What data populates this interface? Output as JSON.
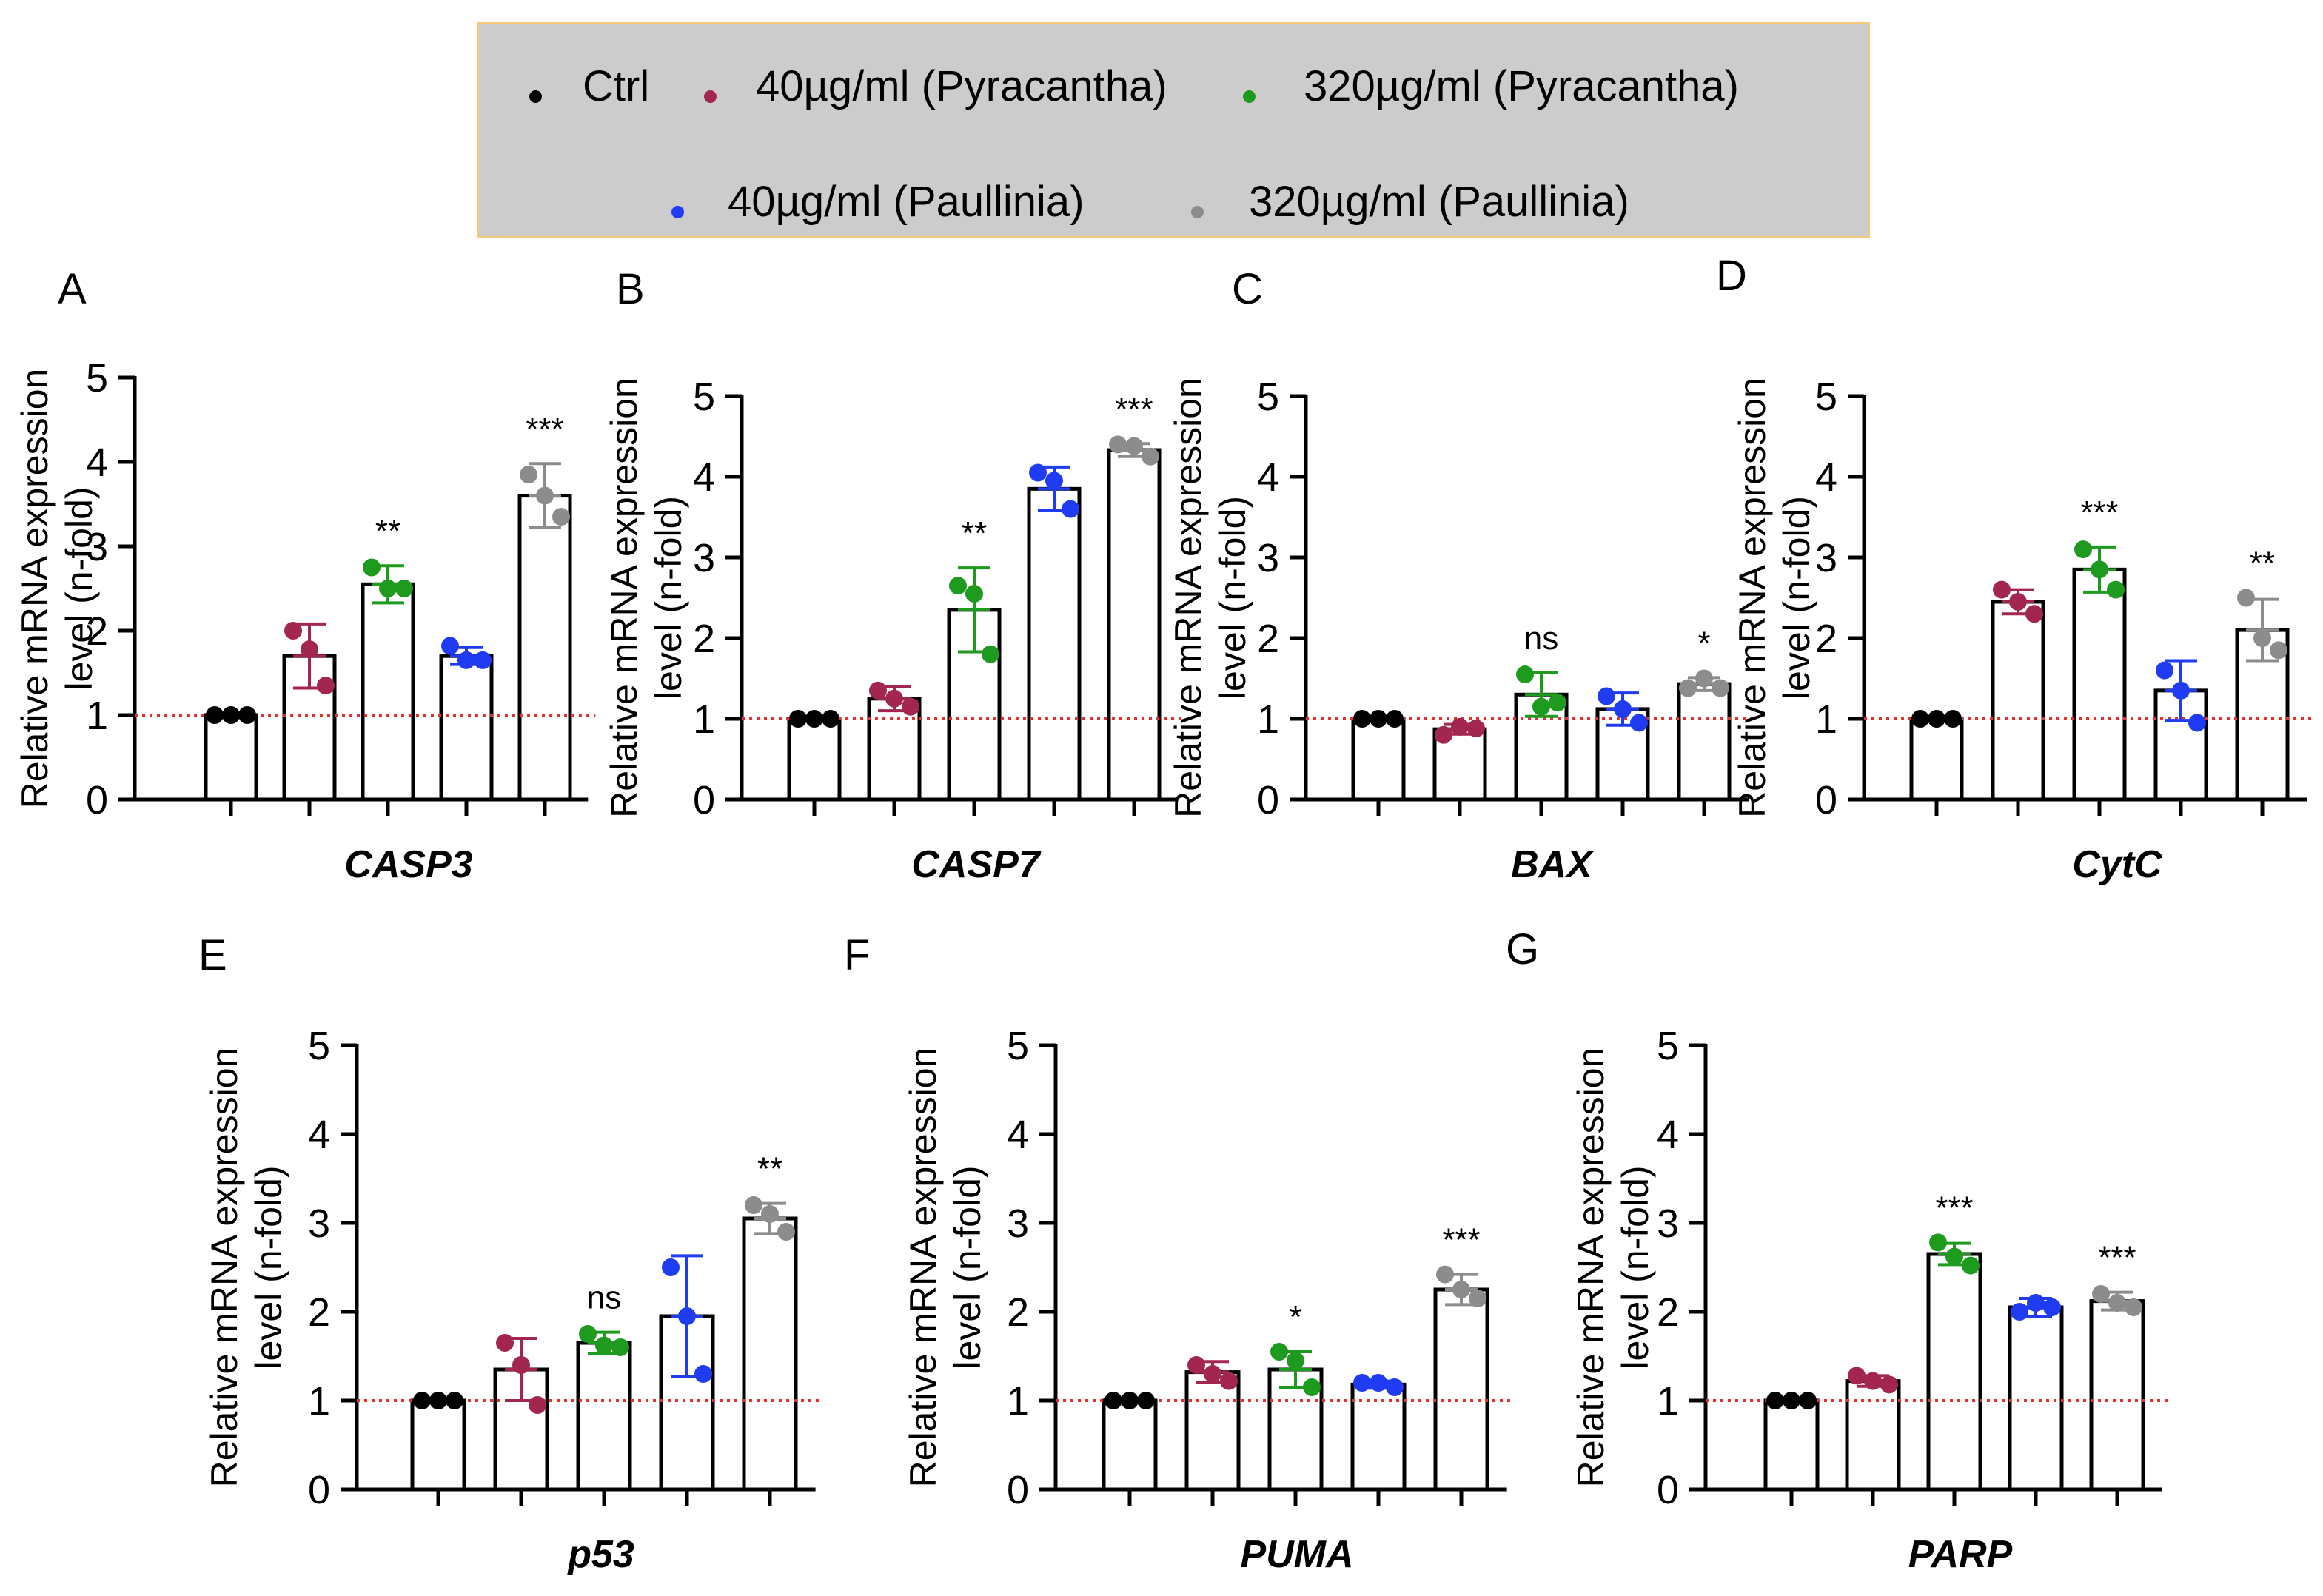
{
  "legend": {
    "items": [
      {
        "label": "Ctrl",
        "color": "#000000"
      },
      {
        "label": "40µg/ml (Pyracantha)",
        "color": "#a3264f"
      },
      {
        "label": "320µg/ml (Pyracantha)",
        "color": "#1e9a1e"
      },
      {
        "label": "40µg/ml (Paullinia)",
        "color": "#1f3cf2"
      },
      {
        "label": "320µg/ml (Paullinia)",
        "color": "#8c8c8c"
      }
    ]
  },
  "reference_line": {
    "value": 1,
    "color": "#e53030",
    "style": "dotted"
  },
  "chart_data": [
    {
      "type": "bar",
      "panel": "A",
      "gene": "CASP3",
      "ylabel": "Relative mRNA expression level (n-fold)",
      "ylim": [
        0,
        5
      ],
      "yticks": [
        "0",
        "1",
        "2",
        "3",
        "4",
        "5"
      ],
      "categories": [
        "Ctrl",
        "40µg/ml (Pyracantha)",
        "320µg/ml (Pyracantha)",
        "40µg/ml (Paullinia)",
        "320µg/ml (Paullinia)"
      ],
      "values": [
        1.0,
        1.7,
        2.55,
        1.7,
        3.6
      ],
      "sd": [
        0.02,
        0.38,
        0.22,
        0.1,
        0.38
      ],
      "points": [
        [
          1.0,
          1.0,
          1.0
        ],
        [
          2.0,
          1.35,
          1.78
        ],
        [
          2.75,
          2.5,
          2.5
        ],
        [
          1.82,
          1.65,
          1.65
        ],
        [
          3.85,
          3.35,
          3.6
        ]
      ],
      "significance": [
        "",
        "",
        "**",
        "",
        "***"
      ]
    },
    {
      "type": "bar",
      "panel": "B",
      "gene": "CASP7",
      "ylabel": "Relative mRNA expression level (n-fold)",
      "ylim": [
        0,
        5
      ],
      "yticks": [
        "0",
        "1",
        "2",
        "3",
        "4",
        "5"
      ],
      "categories": [
        "Ctrl",
        "40µg/ml (Pyracantha)",
        "320µg/ml (Pyracantha)",
        "40µg/ml (Paullinia)",
        "320µg/ml (Paullinia)"
      ],
      "values": [
        1.0,
        1.25,
        2.35,
        3.85,
        4.33
      ],
      "sd": [
        0.02,
        0.15,
        0.52,
        0.27,
        0.08
      ],
      "points": [
        [
          1.0,
          1.0,
          1.0
        ],
        [
          1.35,
          1.15,
          1.25
        ],
        [
          2.65,
          1.8,
          2.55
        ],
        [
          4.05,
          3.6,
          3.95
        ],
        [
          4.4,
          4.25,
          4.38
        ]
      ],
      "significance": [
        "",
        "",
        "**",
        "",
        "***"
      ]
    },
    {
      "type": "bar",
      "panel": "C",
      "gene": "BAX",
      "ylabel": "Relative mRNA expression level (n-fold)",
      "ylim": [
        0,
        5
      ],
      "yticks": [
        "0",
        "1",
        "2",
        "3",
        "4",
        "5"
      ],
      "categories": [
        "Ctrl",
        "40µg/ml (Pyracantha)",
        "320µg/ml (Pyracantha)",
        "40µg/ml (Paullinia)",
        "320µg/ml (Paullinia)"
      ],
      "values": [
        1.0,
        0.87,
        1.3,
        1.12,
        1.43
      ],
      "sd": [
        0.02,
        0.06,
        0.27,
        0.2,
        0.08
      ],
      "points": [
        [
          1.0,
          1.0,
          1.0
        ],
        [
          0.8,
          0.88,
          0.9
        ],
        [
          1.55,
          1.2,
          1.15
        ],
        [
          1.28,
          0.95,
          1.12
        ],
        [
          1.38,
          1.38,
          1.5
        ]
      ],
      "significance": [
        "",
        "",
        "ns",
        "",
        "*"
      ]
    },
    {
      "type": "bar",
      "panel": "D",
      "gene": "CytC",
      "ylabel": "Relative mRNA expression level (n-fold)",
      "ylim": [
        0,
        5
      ],
      "yticks": [
        "0",
        "1",
        "2",
        "3",
        "4",
        "5"
      ],
      "categories": [
        "Ctrl",
        "40µg/ml (Pyracantha)",
        "320µg/ml (Pyracantha)",
        "40µg/ml (Paullinia)",
        "320µg/ml (Paullinia)"
      ],
      "values": [
        1.0,
        2.45,
        2.85,
        1.35,
        2.1
      ],
      "sd": [
        0.02,
        0.15,
        0.28,
        0.37,
        0.38
      ],
      "points": [
        [
          1.0,
          1.0,
          1.0
        ],
        [
          2.6,
          2.3,
          2.45
        ],
        [
          3.1,
          2.6,
          2.85
        ],
        [
          1.6,
          0.95,
          1.35
        ],
        [
          2.5,
          1.85,
          2.0
        ]
      ],
      "significance": [
        "",
        "",
        "***",
        "",
        "**"
      ]
    },
    {
      "type": "bar",
      "panel": "E",
      "gene": "p53",
      "ylabel": "Relative mRNA expression level (n-fold)",
      "ylim": [
        0,
        5
      ],
      "yticks": [
        "0",
        "1",
        "2",
        "3",
        "4",
        "5"
      ],
      "categories": [
        "Ctrl",
        "40µg/ml (Pyracantha)",
        "320µg/ml (Pyracantha)",
        "40µg/ml (Paullinia)",
        "320µg/ml (Paullinia)"
      ],
      "values": [
        1.0,
        1.35,
        1.65,
        1.95,
        3.05
      ],
      "sd": [
        0.02,
        0.35,
        0.12,
        0.68,
        0.17
      ],
      "points": [
        [
          1.0,
          1.0,
          1.0
        ],
        [
          1.65,
          0.95,
          1.4
        ],
        [
          1.75,
          1.6,
          1.62
        ],
        [
          2.5,
          1.3,
          1.95
        ],
        [
          3.2,
          2.9,
          3.1
        ]
      ],
      "significance": [
        "",
        "",
        "ns",
        "",
        "**"
      ]
    },
    {
      "type": "bar",
      "panel": "F",
      "gene": "PUMA",
      "ylabel": "Relative mRNA expression level (n-fold)",
      "ylim": [
        0,
        5
      ],
      "yticks": [
        "0",
        "1",
        "2",
        "3",
        "4",
        "5"
      ],
      "categories": [
        "Ctrl",
        "40µg/ml (Pyracantha)",
        "320µg/ml (Pyracantha)",
        "40µg/ml (Paullinia)",
        "320µg/ml (Paullinia)"
      ],
      "values": [
        1.0,
        1.32,
        1.35,
        1.18,
        2.25
      ],
      "sd": [
        0.02,
        0.12,
        0.2,
        0.04,
        0.17
      ],
      "points": [
        [
          1.0,
          1.0,
          1.0
        ],
        [
          1.4,
          1.22,
          1.3
        ],
        [
          1.55,
          1.15,
          1.45
        ],
        [
          1.2,
          1.15,
          1.2
        ],
        [
          2.42,
          2.15,
          2.25
        ]
      ],
      "significance": [
        "",
        "",
        "*",
        "",
        "***"
      ]
    },
    {
      "type": "bar",
      "panel": "G",
      "gene": "PARP",
      "ylabel": "Relative mRNA expression level (n-fold)",
      "ylim": [
        0,
        5
      ],
      "yticks": [
        "0",
        "1",
        "2",
        "3",
        "4",
        "5"
      ],
      "categories": [
        "Ctrl",
        "40µg/ml (Pyracantha)",
        "320µg/ml (Pyracantha)",
        "40µg/ml (Paullinia)",
        "320µg/ml (Paullinia)"
      ],
      "values": [
        1.0,
        1.22,
        2.65,
        2.05,
        2.12
      ],
      "sd": [
        0.02,
        0.06,
        0.12,
        0.1,
        0.1
      ],
      "points": [
        [
          1.0,
          1.0,
          1.0
        ],
        [
          1.28,
          1.18,
          1.22
        ],
        [
          2.78,
          2.52,
          2.62
        ],
        [
          2.0,
          2.05,
          2.1
        ],
        [
          2.2,
          2.05,
          2.1
        ]
      ],
      "significance": [
        "",
        "",
        "***",
        "",
        "***"
      ]
    }
  ]
}
